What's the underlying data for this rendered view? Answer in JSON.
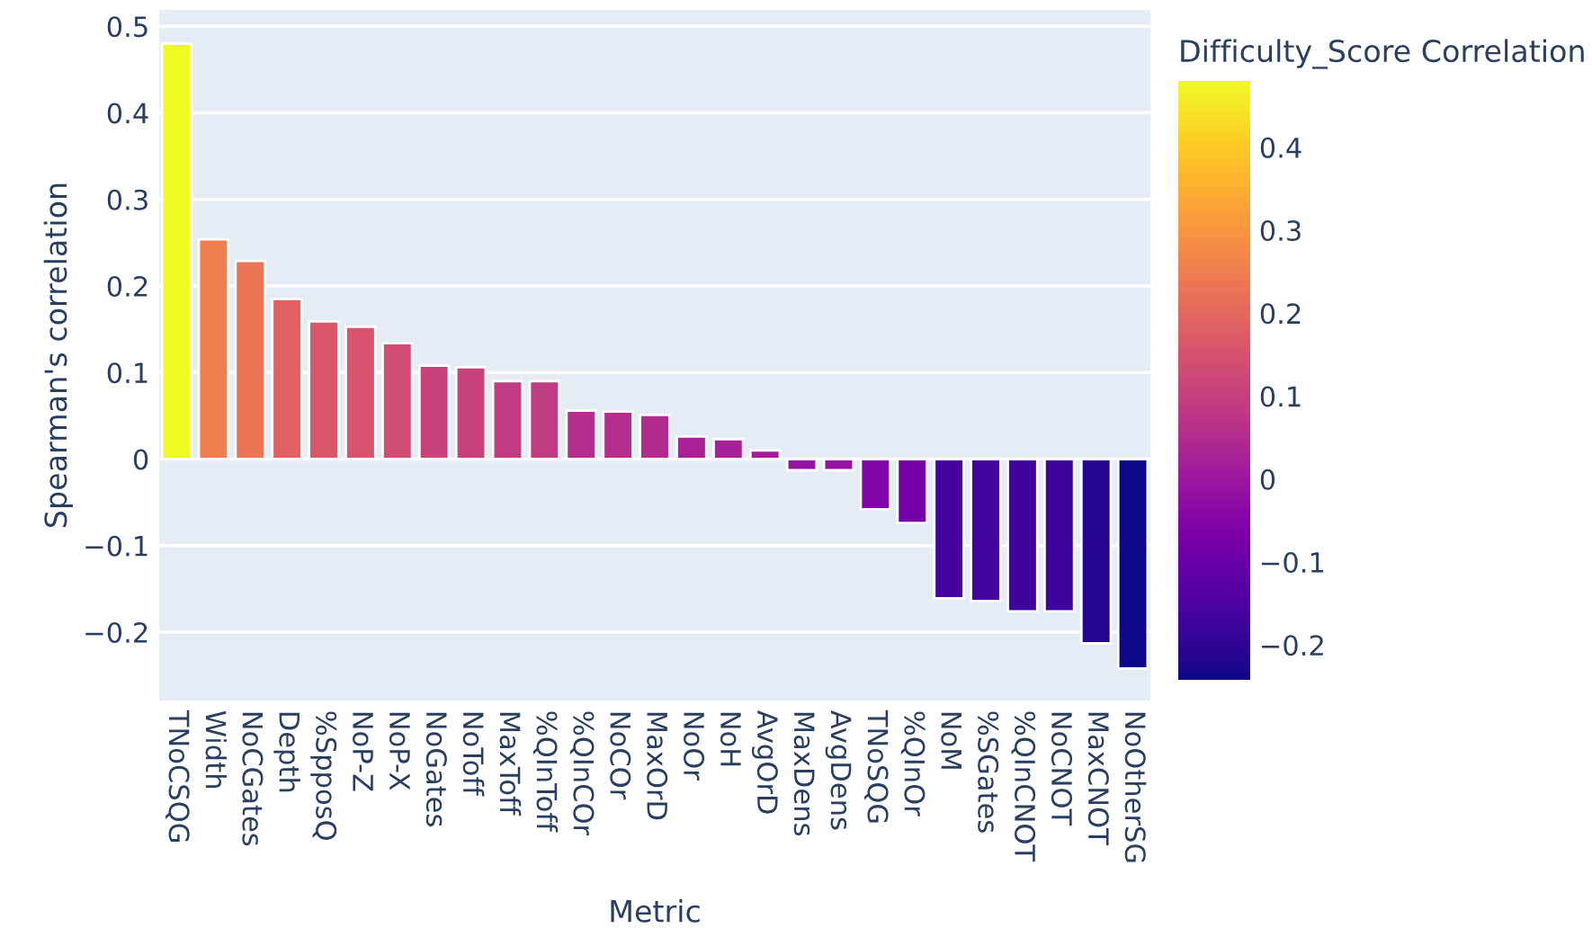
{
  "chart_data": {
    "type": "bar",
    "xlabel": "Metric",
    "ylabel": "Spearman's correlation",
    "clabel": "Difficulty_Score Correlation",
    "categories": [
      "TNoCSQG",
      "Width",
      "NoCGates",
      "Depth",
      "%SpposQ",
      "NoP-Z",
      "NoP-X",
      "NoGates",
      "NoToff",
      "MaxToff",
      "%QInToff",
      "%QInCOr",
      "NoCOr",
      "MaxOrD",
      "NoOr",
      "NoH",
      "AvgOrD",
      "MaxDens",
      "AvgDens",
      "TNoSQG",
      "%QInOr",
      "NoM",
      "%SGates",
      "%QInCNOT",
      "NoCNOT",
      "MaxCNOT",
      "NoOtherSG"
    ],
    "values": [
      0.48,
      0.254,
      0.229,
      0.185,
      0.159,
      0.153,
      0.134,
      0.108,
      0.106,
      0.09,
      0.09,
      0.056,
      0.055,
      0.051,
      0.026,
      0.023,
      0.01,
      -0.013,
      -0.013,
      -0.058,
      -0.074,
      -0.161,
      -0.164,
      -0.176,
      -0.176,
      -0.213,
      -0.242
    ],
    "ylim": [
      -0.28,
      0.52
    ],
    "yticks": [
      -0.2,
      -0.1,
      {
        "value": 0,
        "label": "0"
      },
      0.1,
      0.2,
      0.3,
      0.4,
      0.5
    ],
    "clim": [
      -0.242,
      0.48
    ],
    "cticks": [
      -0.2,
      -0.1,
      {
        "value": 0,
        "label": "0"
      },
      0.1,
      0.2,
      0.3,
      0.4
    ],
    "grid": "y",
    "legend": false
  }
}
